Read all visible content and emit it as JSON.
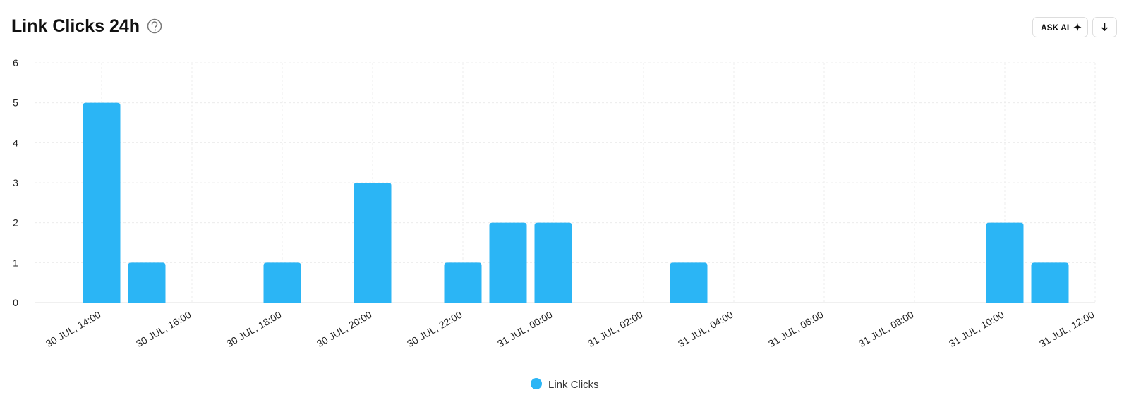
{
  "chart_data": {
    "type": "bar",
    "title": "Link Clicks 24h",
    "categories": [
      "30 JUL, 14:00",
      null,
      "30 JUL, 16:00",
      null,
      "30 JUL, 18:00",
      null,
      "30 JUL, 20:00",
      null,
      "30 JUL, 22:00",
      null,
      "31 JUL, 00:00",
      null,
      "31 JUL, 02:00",
      null,
      "31 JUL, 04:00",
      null,
      "31 JUL, 06:00",
      null,
      "31 JUL, 08:00",
      null,
      "31 JUL, 10:00",
      null,
      "31 JUL, 12:00"
    ],
    "series": [
      {
        "name": "Link Clicks",
        "color": "#2bb5f5",
        "values": [
          5,
          1,
          0,
          0,
          1,
          0,
          3,
          0,
          1,
          2,
          2,
          0,
          0,
          1,
          0,
          0,
          0,
          0,
          0,
          0,
          2,
          1,
          0
        ]
      }
    ],
    "ylim": [
      0,
      6
    ],
    "yticks": [
      0,
      1,
      2,
      3,
      4,
      5,
      6
    ],
    "grid": true,
    "legend": "bottom"
  },
  "ui": {
    "ask_ai_button": "ASK AI"
  }
}
